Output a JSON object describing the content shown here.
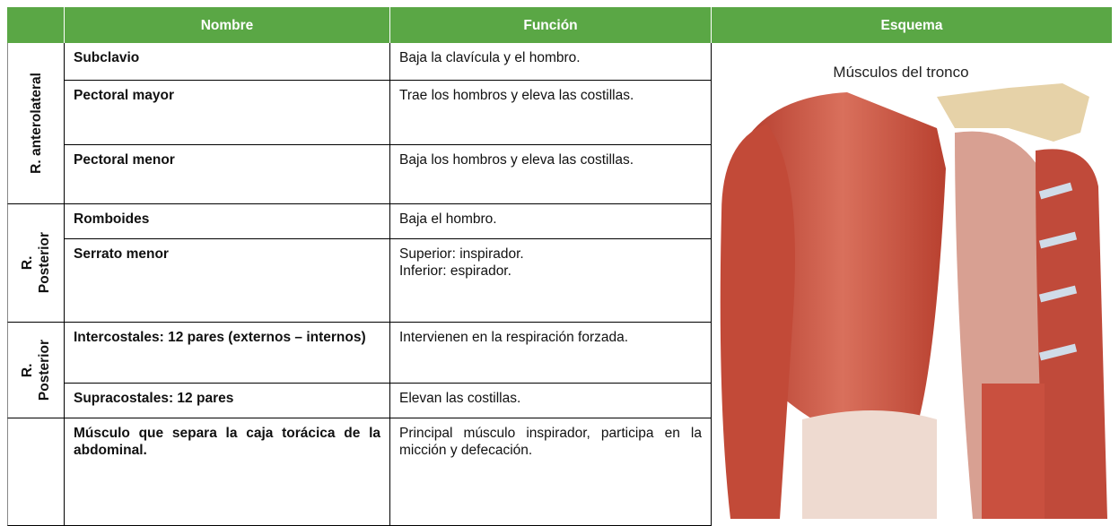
{
  "table": {
    "headers": [
      "Nombre",
      "Función",
      "Esquema"
    ],
    "groups": [
      {
        "label_lines": [
          "R. anterolateral"
        ],
        "rows": [
          {
            "name": "Subclavio",
            "function": [
              "Baja la clavícula y el hombro."
            ]
          },
          {
            "name": "Pectoral mayor",
            "function": [
              "Trae los hombros y eleva las costillas."
            ]
          },
          {
            "name": "Pectoral menor",
            "function": [
              "Baja los hombros y eleva las costillas."
            ]
          }
        ]
      },
      {
        "label_lines": [
          "R.",
          "Posterior"
        ],
        "rows": [
          {
            "name": "Romboides",
            "function": [
              "Baja el hombro."
            ]
          },
          {
            "name": "Serrato menor",
            "function": [
              "Superior: inspirador.",
              "Inferior: espirador."
            ]
          }
        ]
      },
      {
        "label_lines": [
          "R.",
          "Posterior"
        ],
        "rows": [
          {
            "name": "Intercostales: 12 pares (externos – internos)",
            "function": [
              "Intervienen en la respiración forzada."
            ]
          },
          {
            "name": "Supracostales: 12 pares",
            "function": [
              "Elevan las costillas."
            ]
          }
        ]
      },
      {
        "rows": [
          {
            "name": "Músculo que separa la caja torácica de la abdominal.",
            "function": [
              "Principal músculo inspirador, participa en la micción y defecación."
            ]
          }
        ]
      }
    ],
    "figure_caption": "Músculos del tronco"
  }
}
